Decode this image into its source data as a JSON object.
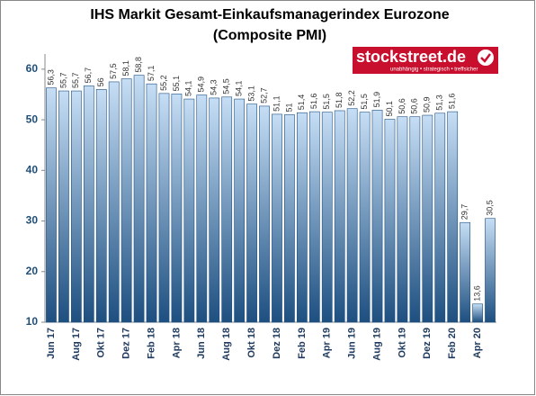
{
  "chart_data": {
    "type": "bar",
    "title": "IHS Markit Gesamt-Einkaufsmanagerindex Eurozone",
    "subtitle": "(Composite PMI)",
    "categories": [
      "Jun 17",
      null,
      "Aug 17",
      null,
      "Okt 17",
      null,
      "Dez 17",
      null,
      "Feb 18",
      null,
      "Apr 18",
      null,
      "Jun 18",
      null,
      "Aug 18",
      null,
      "Okt 18",
      null,
      "Dez 18",
      null,
      "Feb 19",
      null,
      "Apr 19",
      null,
      "Jun 19",
      null,
      "Aug 19",
      null,
      "Okt 19",
      null,
      "Dez 19",
      null,
      "Feb 20",
      null,
      "Apr 20",
      null
    ],
    "values": [
      56.3,
      55.7,
      55.7,
      56.7,
      56,
      57.5,
      58.1,
      58.8,
      57.1,
      55.2,
      55.1,
      54.1,
      54.9,
      54.3,
      54.5,
      54.1,
      53.1,
      52.7,
      51.1,
      51,
      51.4,
      51.6,
      51.5,
      51.8,
      52.2,
      51.5,
      51.9,
      50.1,
      50.6,
      50.6,
      50.9,
      51.3,
      51.6,
      29.7,
      13.6,
      30.5
    ],
    "value_labels": [
      "56,3",
      "55,7",
      "55,7",
      "56,7",
      "56",
      "57,5",
      "58,1",
      "58,8",
      "57,1",
      "55,2",
      "55,1",
      "54,1",
      "54,9",
      "54,3",
      "54,5",
      "54,1",
      "53,1",
      "52,7",
      "51,1",
      "51",
      "51,4",
      "51,6",
      "51,5",
      "51,8",
      "52,2",
      "51,5",
      "51,9",
      "50,1",
      "50,6",
      "50,6",
      "50,9",
      "51,3",
      "51,6",
      "29,7",
      "13,6",
      "30,5"
    ],
    "color_top": "#c6def5",
    "color_bottom": "#1d4f80",
    "ylim": [
      10,
      63
    ],
    "yticks": [
      10,
      20,
      30,
      40,
      50,
      60
    ],
    "grid": false
  },
  "logo": {
    "name": "stockstreet.de",
    "tagline": "unabhängig • strategisch • treffsicher"
  }
}
